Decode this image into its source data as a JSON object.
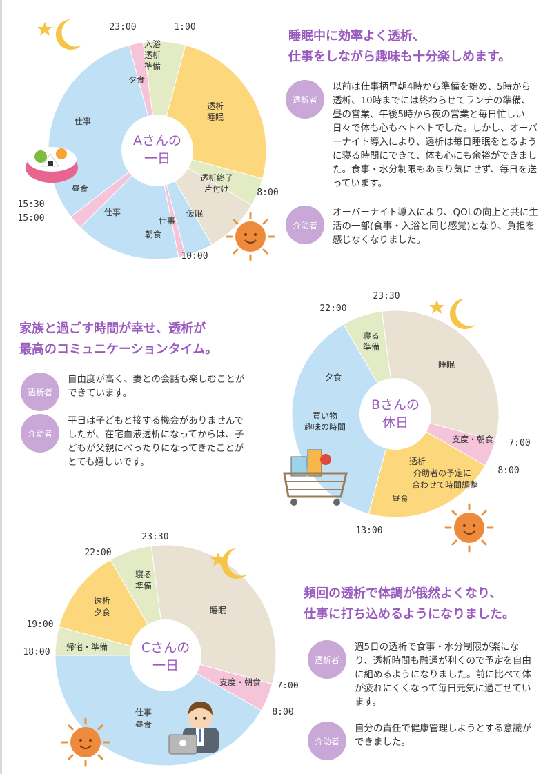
{
  "sectionA": {
    "chart": {
      "center": [
        "Aさんの",
        "一日"
      ],
      "segments": [
        {
          "label": [
            "入浴",
            "透析",
            "準備"
          ],
          "from": "23:30",
          "to": "1:00",
          "color": "#e3ebc5"
        },
        {
          "label": [
            "透析",
            "睡眠"
          ],
          "from": "1:00",
          "to": "7:00",
          "color": "#fcd77c"
        },
        {
          "label": [
            "透析終了",
            "片付け"
          ],
          "from": "7:00",
          "to": "8:00",
          "color": "#e3ebc5"
        },
        {
          "label": [
            "仮眠"
          ],
          "from": "8:00",
          "to": "10:00",
          "color": "#e9e1d1"
        },
        {
          "label": [
            "仕事"
          ],
          "from": "10:00",
          "to": "11:00",
          "color": "#bfe0f5"
        },
        {
          "label": [
            "朝食"
          ],
          "from": "11:00",
          "to": "11:15",
          "color": "#f6c4d9"
        },
        {
          "label": [
            "仕事"
          ],
          "from": "11:15",
          "to": "15:00",
          "color": "#bfe0f5"
        },
        {
          "label": [
            "昼食"
          ],
          "from": "15:00",
          "to": "15:30",
          "color": "#f6c4d9"
        },
        {
          "label": [
            "仕事"
          ],
          "from": "15:30",
          "to": "23:00",
          "color": "#bfe0f5"
        },
        {
          "label": [
            "夕食"
          ],
          "from": "23:00",
          "to": "23:30",
          "color": "#f6c4d9"
        }
      ],
      "times": [
        "23:00",
        "1:00",
        "8:00",
        "10:00",
        "15:00",
        "15:30"
      ]
    },
    "headline": [
      "睡眠中に効率よく透析、",
      "仕事をしながら趣味も十分楽しめます。"
    ],
    "entries": [
      {
        "badge": "透析者",
        "text": "以前は仕事柄早朝4時から準備を始め、5時から透析、10時までには終わらせてランチの準備、昼の営業、午後5時から夜の営業と毎日忙しい日々で体も心もヘトヘトでした。しかし、オーバーナイト導入により、透析は毎日睡眠をとるように寝る時間にできて、体も心にも余裕ができました。食事・水分制限もあまり気にせず、毎日を送っています。"
      },
      {
        "badge": "介助者",
        "text": "オーバーナイト導入により、QOLの向上と共に生活の一部(食事・入浴と同じ感覚)となり、負担を感じなくなりました。"
      }
    ]
  },
  "sectionB": {
    "chart": {
      "center": [
        "Bさんの",
        "休日"
      ],
      "segments": [
        {
          "label": [
            "睡眠"
          ],
          "from": "23:30",
          "to": "7:00",
          "color": "#e9e1d1"
        },
        {
          "label": [
            "支度・朝食"
          ],
          "from": "7:00",
          "to": "8:00",
          "color": "#f6c4d9"
        },
        {
          "label": [
            "透析",
            "介助者の予定に",
            "合わせて時間調整"
          ],
          "from": "8:00",
          "to": "13:00",
          "color": "#fcd77c"
        },
        {
          "label": [
            "買い物",
            "趣味の時間"
          ],
          "from": "13:00",
          "to": "22:00",
          "color": "#bfe0f5"
        },
        {
          "label": [
            "寝る",
            "準備"
          ],
          "from": "22:00",
          "to": "23:30",
          "color": "#e3ebc5"
        }
      ],
      "extra_labels": [
        "昼食",
        "夕食"
      ],
      "times": [
        "23:30",
        "22:00",
        "7:00",
        "8:00",
        "13:00"
      ]
    },
    "headline": [
      "家族と過ごす時間が幸せ、透析が",
      "最高のコミュニケーションタイム。"
    ],
    "entries": [
      {
        "badge": "透析者",
        "text": "自由度が高く、妻との会話も楽しむことができています。"
      },
      {
        "badge": "介助者",
        "text": "平日は子どもと接する機会がありませんでしたが、在宅血液透析になってからは、子どもが父親にべったりになってきたことがとても嬉しいです。"
      }
    ]
  },
  "sectionC": {
    "chart": {
      "center": [
        "Cさんの",
        "一日"
      ],
      "segments": [
        {
          "label": [
            "睡眠"
          ],
          "from": "23:30",
          "to": "7:00",
          "color": "#e9e1d1"
        },
        {
          "label": [
            "支度・朝食"
          ],
          "from": "7:00",
          "to": "8:00",
          "color": "#f6c4d9"
        },
        {
          "label": [
            "仕事",
            "昼食"
          ],
          "from": "8:00",
          "to": "18:00",
          "color": "#bfe0f5"
        },
        {
          "label": [
            "帰宅・準備"
          ],
          "from": "18:00",
          "to": "19:00",
          "color": "#e3ebc5"
        },
        {
          "label": [
            "透析",
            "夕食"
          ],
          "from": "19:00",
          "to": "22:00",
          "color": "#fcd77c"
        },
        {
          "label": [
            "寝る",
            "準備"
          ],
          "from": "22:00",
          "to": "23:30",
          "color": "#e3ebc5"
        }
      ],
      "times": [
        "23:30",
        "22:00",
        "19:00",
        "18:00",
        "7:00",
        "8:00"
      ]
    },
    "headline": [
      "頻回の透析で体調が俄然よくなり、",
      "仕事に打ち込めるようになりました。"
    ],
    "entries": [
      {
        "badge": "透析者",
        "text": "週5日の透析で食事・水分制限が楽になり、透析時間も融通が利くので予定を自由に組めるようになりました。前に比べて体が疲れにくくなって毎日元気に過ごせています。"
      },
      {
        "badge": "介助者",
        "text": "自分の責任で健康管理しようとする意識ができました。"
      }
    ]
  }
}
